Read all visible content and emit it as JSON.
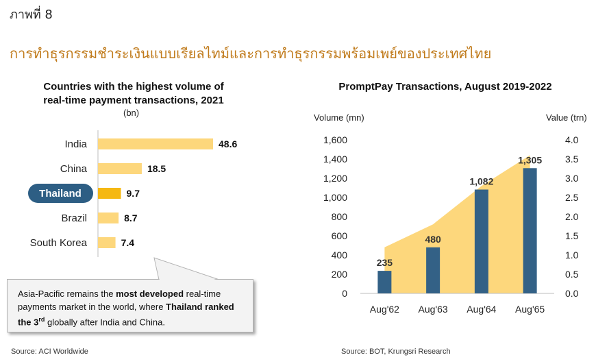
{
  "figure_label": "ภาพที่ 8",
  "headline": "การทำธุรกรรมชำระเงินแบบเรียลไทม์และการทำธุรกรรมพร้อมเพย์ของประเทศไทย",
  "colors": {
    "bar_light": "#fdd77c",
    "bar_highlight": "#f5b812",
    "area": "#fdd77c",
    "bar_dark": "#336186",
    "highlight_pill": "#2d5e84",
    "headline": "#c07a1a"
  },
  "chart_data": [
    {
      "type": "bar",
      "orientation": "horizontal",
      "title_line1": "Countries with the highest volume of",
      "title_line2": "real-time payment transactions, 2021",
      "unit": "(bn)",
      "categories": [
        "India",
        "China",
        "Thailand",
        "Brazil",
        "South Korea"
      ],
      "values": [
        48.6,
        18.5,
        9.7,
        8.7,
        7.4
      ],
      "value_labels": [
        "48.6",
        "18.5",
        "9.7",
        "8.7",
        "7.4"
      ],
      "highlight": "Thailand",
      "source": "Source: ACI Worldwide"
    },
    {
      "type": "bar",
      "title": "PromptPay Transactions, August 2019-2022",
      "left_axis_label": "Volume (mn)",
      "right_axis_label": "Value (trn)",
      "categories": [
        "Aug'62",
        "Aug'63",
        "Aug'64",
        "Aug'65"
      ],
      "series": [
        {
          "type": "bar",
          "axis": "left",
          "values": [
            235,
            480,
            1082,
            1305
          ]
        },
        {
          "type": "area",
          "axis": "right",
          "values": [
            1.2,
            1.8,
            2.8,
            3.6
          ]
        }
      ],
      "bar_value_labels": [
        "235",
        "480",
        "1,082",
        "1,305"
      ],
      "left_ticks": [
        "0",
        "200",
        "400",
        "600",
        "800",
        "1,000",
        "1,200",
        "1,400",
        "1,600"
      ],
      "right_ticks": [
        "0.0",
        "0.5",
        "1.0",
        "1.5",
        "2.0",
        "2.5",
        "3.0",
        "3.5",
        "4.0"
      ],
      "ylim_left": [
        0,
        1600
      ],
      "ylim_right": [
        0,
        4
      ],
      "grid": false,
      "source": "Source: BOT, Krungsri Research"
    }
  ],
  "callout": {
    "part1": "Asia-Pacific remains the ",
    "bold1": "most developed",
    "part2": " real-time payments market in the world, where ",
    "bold2": "Thailand ranked the 3",
    "sup": "rd",
    "part3": " globally after India and China."
  }
}
